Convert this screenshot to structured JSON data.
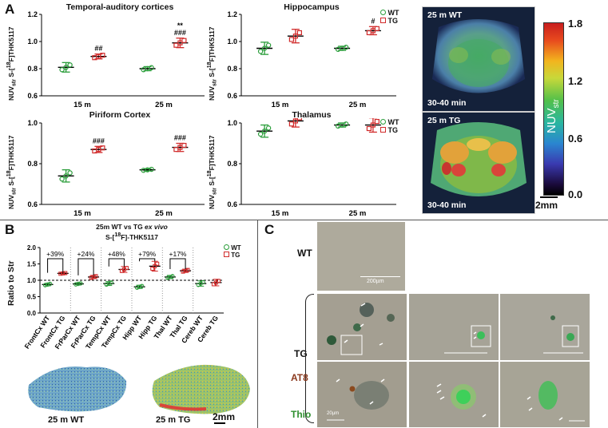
{
  "panelA": {
    "letter": "A",
    "ylabel_main": "NUV",
    "ylabel_sub": "str",
    "ylabel_rest": " S-[",
    "ylabel_sup": "18",
    "ylabel_end": "F]THK5117",
    "legend_wt": "WT",
    "legend_tg": "TG",
    "pet_top_label": "25 m WT",
    "pet_bot_label": "25 m TG",
    "pet_time": "30-40 min",
    "scale_label": "2mm",
    "colorbar": {
      "ticks": [
        "1.8",
        "1.2",
        "0.6",
        "0.0"
      ],
      "label_main": "NUV",
      "label_sub": "str"
    }
  },
  "chart_data": [
    {
      "type": "scatter",
      "title": "Temporal-auditory cortices",
      "categories": [
        "15 m",
        "25 m"
      ],
      "ylim": [
        0.6,
        1.2
      ],
      "yticks": [
        "1.2",
        "1.0",
        "0.8",
        "0.6"
      ],
      "series": [
        {
          "name": "WT",
          "mean": [
            0.81,
            0.8
          ],
          "sd": [
            0.035,
            0.015
          ]
        },
        {
          "name": "TG",
          "mean": [
            0.89,
            0.99
          ],
          "sd": [
            0.018,
            0.035
          ]
        }
      ],
      "annotations": [
        {
          "group": "15 m",
          "text": [
            "##"
          ]
        },
        {
          "group": "25 m",
          "text": [
            "**",
            "###"
          ]
        }
      ]
    },
    {
      "type": "scatter",
      "title": "Hippocampus",
      "categories": [
        "15 m",
        "25 m"
      ],
      "ylim": [
        0.6,
        1.2
      ],
      "yticks": [
        "1.2",
        "1.0",
        "0.8",
        "0.6"
      ],
      "series": [
        {
          "name": "WT",
          "mean": [
            0.95,
            0.95
          ],
          "sd": [
            0.045,
            0.015
          ]
        },
        {
          "name": "TG",
          "mean": [
            1.04,
            1.08
          ],
          "sd": [
            0.05,
            0.03
          ]
        }
      ],
      "annotations": [
        {
          "group": "25 m",
          "text": [
            "#"
          ]
        }
      ]
    },
    {
      "type": "scatter",
      "title": "Piriform Cortex",
      "categories": [
        "15 m",
        "25 m"
      ],
      "ylim": [
        0.6,
        1.0
      ],
      "yticks": [
        "1.0",
        "0.8",
        "0.6"
      ],
      "series": [
        {
          "name": "WT",
          "mean": [
            0.74,
            0.77
          ],
          "sd": [
            0.03,
            0.005
          ]
        },
        {
          "name": "TG",
          "mean": [
            0.87,
            0.88
          ],
          "sd": [
            0.015,
            0.02
          ]
        }
      ],
      "annotations": [
        {
          "group": "15 m",
          "text": [
            "###"
          ]
        },
        {
          "group": "25 m",
          "text": [
            "###"
          ]
        }
      ]
    },
    {
      "type": "scatter",
      "title": "Thalamus",
      "categories": [
        "15 m",
        "25 m"
      ],
      "ylim": [
        0.6,
        1.0
      ],
      "yticks": [
        "1.0",
        "0.8",
        "0.6"
      ],
      "series": [
        {
          "name": "WT",
          "mean": [
            0.96,
            0.99
          ],
          "sd": [
            0.03,
            0.01
          ]
        },
        {
          "name": "TG",
          "mean": [
            1.01,
            0.99
          ],
          "sd": [
            0.03,
            0.035
          ]
        }
      ],
      "annotations": []
    },
    {
      "type": "scatter",
      "title": "25m WT vs TG ex vivo",
      "subtitle": "S-[18F]-THK5117",
      "ylabel": "Ratio to Str",
      "ylim": [
        0.0,
        2.0
      ],
      "yticks": [
        "2.0",
        "1.5",
        "1.0",
        "0.5",
        "0.0"
      ],
      "categories": [
        "FrontCx WT",
        "FrontCx TG",
        "FrParCx WT",
        "FrParCx TG",
        "TempCx WT",
        "TempCx TG",
        "Hipp WT",
        "Hipp TG",
        "Thal WT",
        "Thal TG",
        "Cereb WT",
        "Cereb TG"
      ],
      "values": [
        0.87,
        1.21,
        0.89,
        1.1,
        0.9,
        1.33,
        0.8,
        1.43,
        1.1,
        1.29,
        0.9,
        0.93
      ],
      "sd": [
        0.04,
        0.02,
        0.03,
        0.05,
        0.06,
        0.09,
        0.05,
        0.15,
        0.05,
        0.05,
        0.08,
        0.1
      ],
      "brackets": [
        "+39%",
        "+24%",
        "+48%",
        "+79%",
        "+17%"
      ],
      "reference_line": 1.0,
      "legend": [
        "WT",
        "TG"
      ]
    }
  ],
  "panelB": {
    "letter": "B",
    "title_line1": "25m WT vs TG ",
    "title_italic": "ex vivo",
    "title_line2_a": "S-[",
    "title_line2_sup": "18",
    "title_line2_b": "F]-THK5117",
    "ylabel": "Ratio to Str",
    "legend_wt": "WT",
    "legend_tg": "TG",
    "autorad_wt": "25 m WT",
    "autorad_tg": "25 m TG",
    "scale_label": "2mm"
  },
  "panelC": {
    "letter": "C",
    "wt_label": "WT",
    "tg_label": "TG",
    "at8_label": "AT8",
    "thio_label": "Thio",
    "scale_200": "200µm",
    "scale_20": "20µm"
  }
}
